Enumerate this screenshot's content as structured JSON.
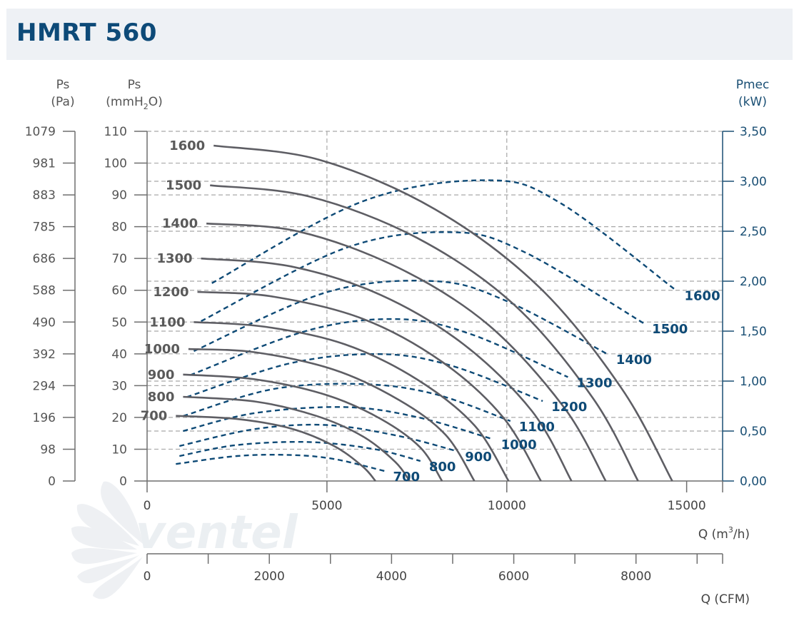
{
  "title": "HMRT 560",
  "watermark": "ventel",
  "chart_data": {
    "type": "line",
    "axes": {
      "x_flow": {
        "label": "Q (m",
        "sup": "3",
        "label_tail": "/h)",
        "min": 0,
        "max": 16000,
        "ticks": [
          "0",
          "5000",
          "10000",
          "15000"
        ],
        "tick_values": [
          0,
          5000,
          10000,
          15000
        ]
      },
      "x_cfm": {
        "label": "Q (CFM)",
        "min": 0,
        "max": 9417,
        "ticks": [
          "0",
          "2000",
          "4000",
          "6000",
          "8000"
        ],
        "tick_values": [
          0,
          2000,
          4000,
          6000,
          8000
        ]
      },
      "y_pa": {
        "label_top": "Ps",
        "label_unit": "(Pa)",
        "ticks": [
          "1079",
          "981",
          "883",
          "785",
          "686",
          "588",
          "490",
          "392",
          "294",
          "196",
          "98",
          "0"
        ]
      },
      "y_mmh2o": {
        "label_top": "Ps",
        "label_unit_a": "(mmH",
        "label_unit_sub": "2",
        "label_unit_b": "O)",
        "min": 0,
        "max": 110,
        "ticks": [
          "110",
          "100",
          "90",
          "80",
          "70",
          "60",
          "50",
          "40",
          "30",
          "20",
          "10",
          "0"
        ]
      },
      "y_power": {
        "label_top": "Pmec",
        "label_unit": "(kW)",
        "min": 0,
        "max": 3.5,
        "ticks": [
          "3,50",
          "3,00",
          "2,50",
          "2,00",
          "1,50",
          "1,00",
          "0,50",
          "0,00"
        ]
      }
    },
    "grid": true,
    "pressure_series": [
      {
        "name": "700",
        "points": [
          [
            800,
            20.5
          ],
          [
            2500,
            19.5
          ],
          [
            4000,
            16.5
          ],
          [
            5200,
            11
          ],
          [
            6000,
            4.5
          ],
          [
            6350,
            0
          ]
        ]
      },
      {
        "name": "800",
        "points": [
          [
            1000,
            26.5
          ],
          [
            3000,
            25
          ],
          [
            4700,
            20.5
          ],
          [
            6000,
            14
          ],
          [
            6900,
            6
          ],
          [
            7300,
            0
          ]
        ]
      },
      {
        "name": "900",
        "points": [
          [
            1000,
            33.5
          ],
          [
            3000,
            32
          ],
          [
            5000,
            27
          ],
          [
            6500,
            19.5
          ],
          [
            7600,
            10.5
          ],
          [
            8200,
            0
          ]
        ]
      },
      {
        "name": "1000",
        "points": [
          [
            1150,
            41.5
          ],
          [
            3000,
            40.5
          ],
          [
            5200,
            35
          ],
          [
            7000,
            25.5
          ],
          [
            8300,
            14.5
          ],
          [
            9100,
            0
          ]
        ]
      },
      {
        "name": "1100",
        "points": [
          [
            1300,
            50
          ],
          [
            3300,
            48.5
          ],
          [
            5500,
            43
          ],
          [
            7500,
            32
          ],
          [
            9100,
            17.5
          ],
          [
            10050,
            0
          ]
        ]
      },
      {
        "name": "1200",
        "points": [
          [
            1400,
            59.5
          ],
          [
            3500,
            58
          ],
          [
            6000,
            51
          ],
          [
            8200,
            37.5
          ],
          [
            9900,
            20
          ],
          [
            10950,
            0
          ]
        ]
      },
      {
        "name": "1300",
        "points": [
          [
            1500,
            70
          ],
          [
            4000,
            67.5
          ],
          [
            6500,
            58.5
          ],
          [
            8800,
            43
          ],
          [
            10700,
            22
          ],
          [
            11800,
            0
          ]
        ]
      },
      {
        "name": "1400",
        "points": [
          [
            1650,
            81
          ],
          [
            4200,
            78.5
          ],
          [
            7000,
            67
          ],
          [
            9500,
            49
          ],
          [
            11600,
            23
          ],
          [
            12750,
            0
          ]
        ]
      },
      {
        "name": "1500",
        "points": [
          [
            1750,
            93
          ],
          [
            4500,
            89.5
          ],
          [
            7500,
            76.5
          ],
          [
            10200,
            55.5
          ],
          [
            12400,
            26
          ],
          [
            13650,
            0
          ]
        ]
      },
      {
        "name": "1600",
        "points": [
          [
            1850,
            105.5
          ],
          [
            4800,
            101
          ],
          [
            8000,
            85.5
          ],
          [
            10900,
            61
          ],
          [
            13200,
            29
          ],
          [
            14600,
            0
          ]
        ]
      }
    ],
    "power_series": [
      {
        "name": "700",
        "points": [
          [
            800,
            0.17
          ],
          [
            2500,
            0.25
          ],
          [
            4000,
            0.26
          ],
          [
            5200,
            0.22
          ],
          [
            6600,
            0.1
          ]
        ]
      },
      {
        "name": "800",
        "points": [
          [
            900,
            0.25
          ],
          [
            2500,
            0.36
          ],
          [
            4500,
            0.39
          ],
          [
            6300,
            0.32
          ],
          [
            7600,
            0.2
          ]
        ]
      },
      {
        "name": "900",
        "points": [
          [
            900,
            0.35
          ],
          [
            3000,
            0.52
          ],
          [
            5000,
            0.56
          ],
          [
            7000,
            0.45
          ],
          [
            8600,
            0.3
          ]
        ]
      },
      {
        "name": "1000",
        "points": [
          [
            1000,
            0.5
          ],
          [
            3000,
            0.68
          ],
          [
            5500,
            0.74
          ],
          [
            7500,
            0.64
          ],
          [
            9600,
            0.42
          ]
        ]
      },
      {
        "name": "1100",
        "points": [
          [
            1000,
            0.65
          ],
          [
            3500,
            0.92
          ],
          [
            6000,
            0.97
          ],
          [
            8000,
            0.87
          ],
          [
            10100,
            0.6
          ]
        ]
      },
      {
        "name": "1200",
        "points": [
          [
            1100,
            0.84
          ],
          [
            4000,
            1.18
          ],
          [
            6500,
            1.27
          ],
          [
            8500,
            1.15
          ],
          [
            11000,
            0.8
          ]
        ]
      },
      {
        "name": "1300",
        "points": [
          [
            1200,
            1.06
          ],
          [
            4500,
            1.51
          ],
          [
            7000,
            1.62
          ],
          [
            9000,
            1.47
          ],
          [
            11700,
            1.04
          ]
        ]
      },
      {
        "name": "1400",
        "points": [
          [
            1300,
            1.3
          ],
          [
            5000,
            1.89
          ],
          [
            8000,
            2.0
          ],
          [
            10000,
            1.8
          ],
          [
            12800,
            1.27
          ]
        ]
      },
      {
        "name": "1500",
        "points": [
          [
            1500,
            1.6
          ],
          [
            5500,
            2.33
          ],
          [
            8500,
            2.49
          ],
          [
            10500,
            2.29
          ],
          [
            13800,
            1.58
          ]
        ]
      },
      {
        "name": "1600",
        "points": [
          [
            1800,
            1.98
          ],
          [
            6000,
            2.8
          ],
          [
            9500,
            3.01
          ],
          [
            11500,
            2.78
          ],
          [
            14700,
            1.91
          ]
        ]
      }
    ]
  }
}
